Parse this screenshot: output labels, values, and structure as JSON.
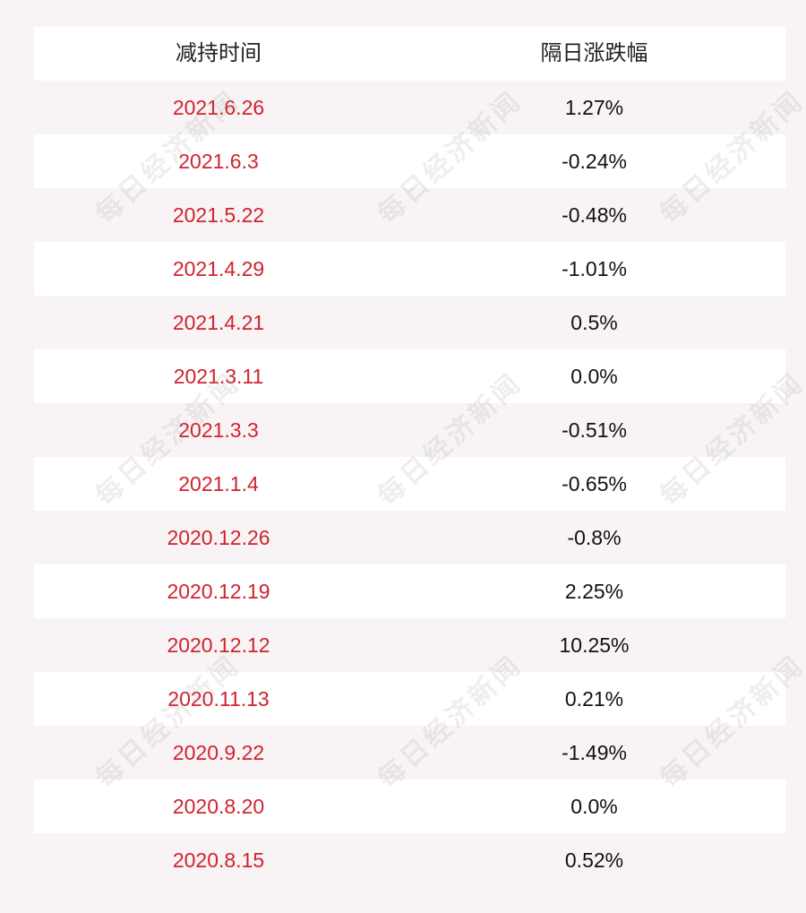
{
  "table": {
    "headers": [
      "减持时间",
      "隔日涨跌幅"
    ],
    "rows": [
      {
        "date": "2021.6.26",
        "change": "1.27%"
      },
      {
        "date": "2021.6.3",
        "change": "-0.24%"
      },
      {
        "date": "2021.5.22",
        "change": "-0.48%"
      },
      {
        "date": "2021.4.29",
        "change": "-1.01%"
      },
      {
        "date": "2021.4.21",
        "change": "0.5%"
      },
      {
        "date": "2021.3.11",
        "change": "0.0%"
      },
      {
        "date": "2021.3.3",
        "change": "-0.51%"
      },
      {
        "date": "2021.1.4",
        "change": "-0.65%"
      },
      {
        "date": "2020.12.26",
        "change": "-0.8%"
      },
      {
        "date": "2020.12.19",
        "change": "2.25%"
      },
      {
        "date": "2020.12.12",
        "change": "10.25%"
      },
      {
        "date": "2020.11.13",
        "change": "0.21%"
      },
      {
        "date": "2020.9.22",
        "change": "-1.49%"
      },
      {
        "date": "2020.8.20",
        "change": "0.0%"
      },
      {
        "date": "2020.8.15",
        "change": "0.52%"
      }
    ]
  },
  "watermark": {
    "text": "每日经济新闻"
  },
  "colors": {
    "date_text": "#d0232f",
    "value_text": "#111111",
    "row_white": "#ffffff",
    "row_pink": "#f8f4f5"
  }
}
